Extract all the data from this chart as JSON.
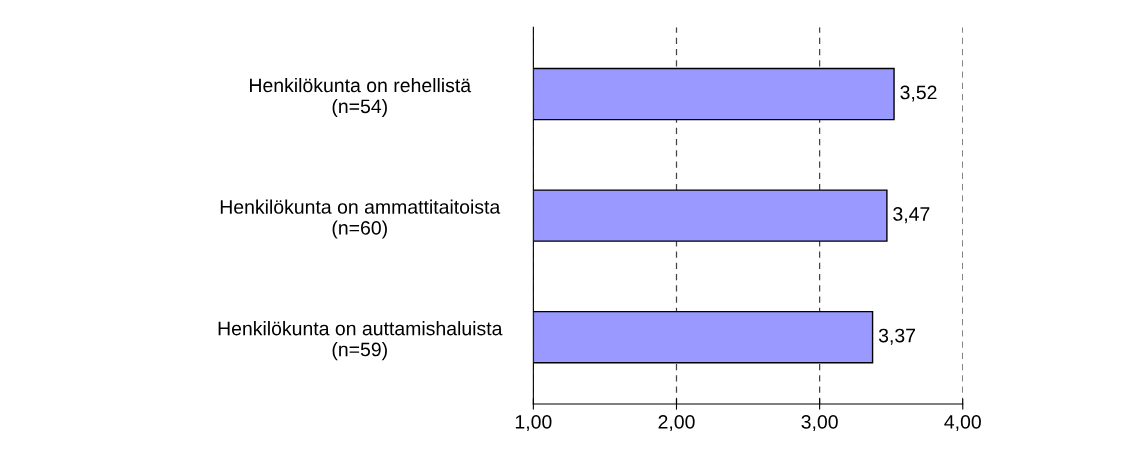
{
  "chart_data": {
    "type": "bar",
    "orientation": "horizontal",
    "categories": [
      "Henkilökunta on rehellistä\n(n=54)",
      "Henkilökunta on ammattitaitoista\n(n=60)",
      "Henkilökunta on auttamishaluista\n(n=59)"
    ],
    "values": [
      3.52,
      3.47,
      3.37
    ],
    "color": "#9999ff",
    "value_labels": [
      "3,52",
      "3,47",
      "3,37"
    ],
    "xlim": [
      1,
      4
    ],
    "xticks": [
      {
        "value": 1,
        "label": "1,00"
      },
      {
        "value": 2,
        "label": "2,00"
      },
      {
        "value": 3,
        "label": "3,00"
      },
      {
        "value": 4,
        "label": "4,00"
      }
    ],
    "grid": "x",
    "legend": false
  }
}
